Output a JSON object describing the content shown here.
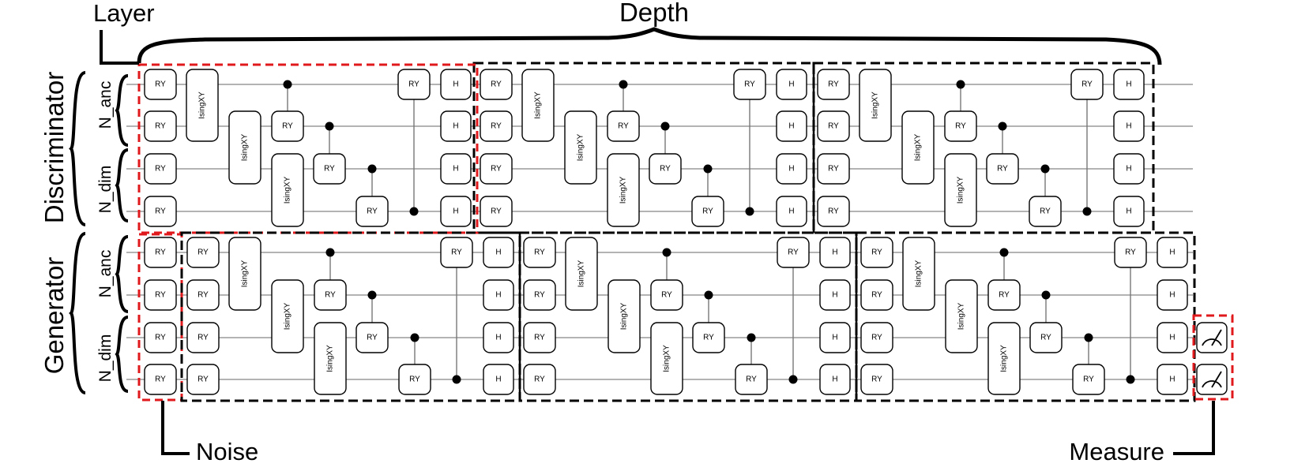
{
  "labels": {
    "layer": "Layer",
    "depth": "Depth",
    "noise": "Noise",
    "measure": "Measure",
    "discriminator": "Discriminator",
    "generator": "Generator",
    "n_anc": "N_anc",
    "n_dim": "N_dim"
  },
  "gates": {
    "ry": "RY",
    "h": "H",
    "isingxy": "IsingXY"
  },
  "circuit": {
    "discriminator_blocks": 3,
    "generator_blocks": 3,
    "qubits_per_section": 4,
    "measured_qubits": 2
  },
  "colors": {
    "highlight": "#e0191d",
    "outline": "#000000",
    "wire": "#9a9a9a"
  }
}
